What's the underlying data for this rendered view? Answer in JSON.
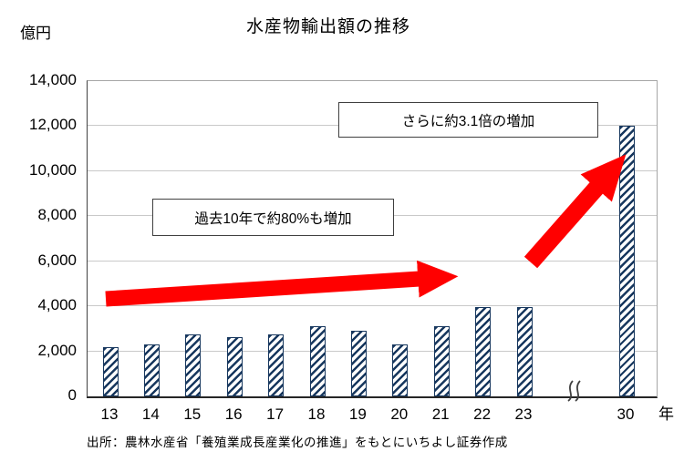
{
  "chart_data": {
    "type": "bar",
    "title": "水産物輸出額の推移",
    "ylabel": "億円",
    "xlabel_suffix": "年",
    "categories": [
      "13",
      "14",
      "15",
      "16",
      "17",
      "18",
      "19",
      "20",
      "21",
      "22",
      "23",
      "30"
    ],
    "values": [
      2200,
      2300,
      2750,
      2650,
      2750,
      3100,
      2900,
      2300,
      3100,
      3950,
      3950,
      12000
    ],
    "ylim": [
      0,
      14000
    ],
    "ytick_step": 2000,
    "yticks": [
      "0",
      "2,000",
      "4,000",
      "6,000",
      "8,000",
      "10,000",
      "12,000",
      "14,000"
    ],
    "axis_break_between": [
      "23",
      "30"
    ],
    "annotations": [
      "過去10年で約80%も増加",
      "さらに約3.1倍の増加"
    ],
    "legend": [],
    "grid": "horizontal",
    "bar_color": "#17375E",
    "arrow_color": "#FF0000"
  },
  "source": "出所：農林水産省「養殖業成長産業化の推進」をもとにいちよし証券作成"
}
